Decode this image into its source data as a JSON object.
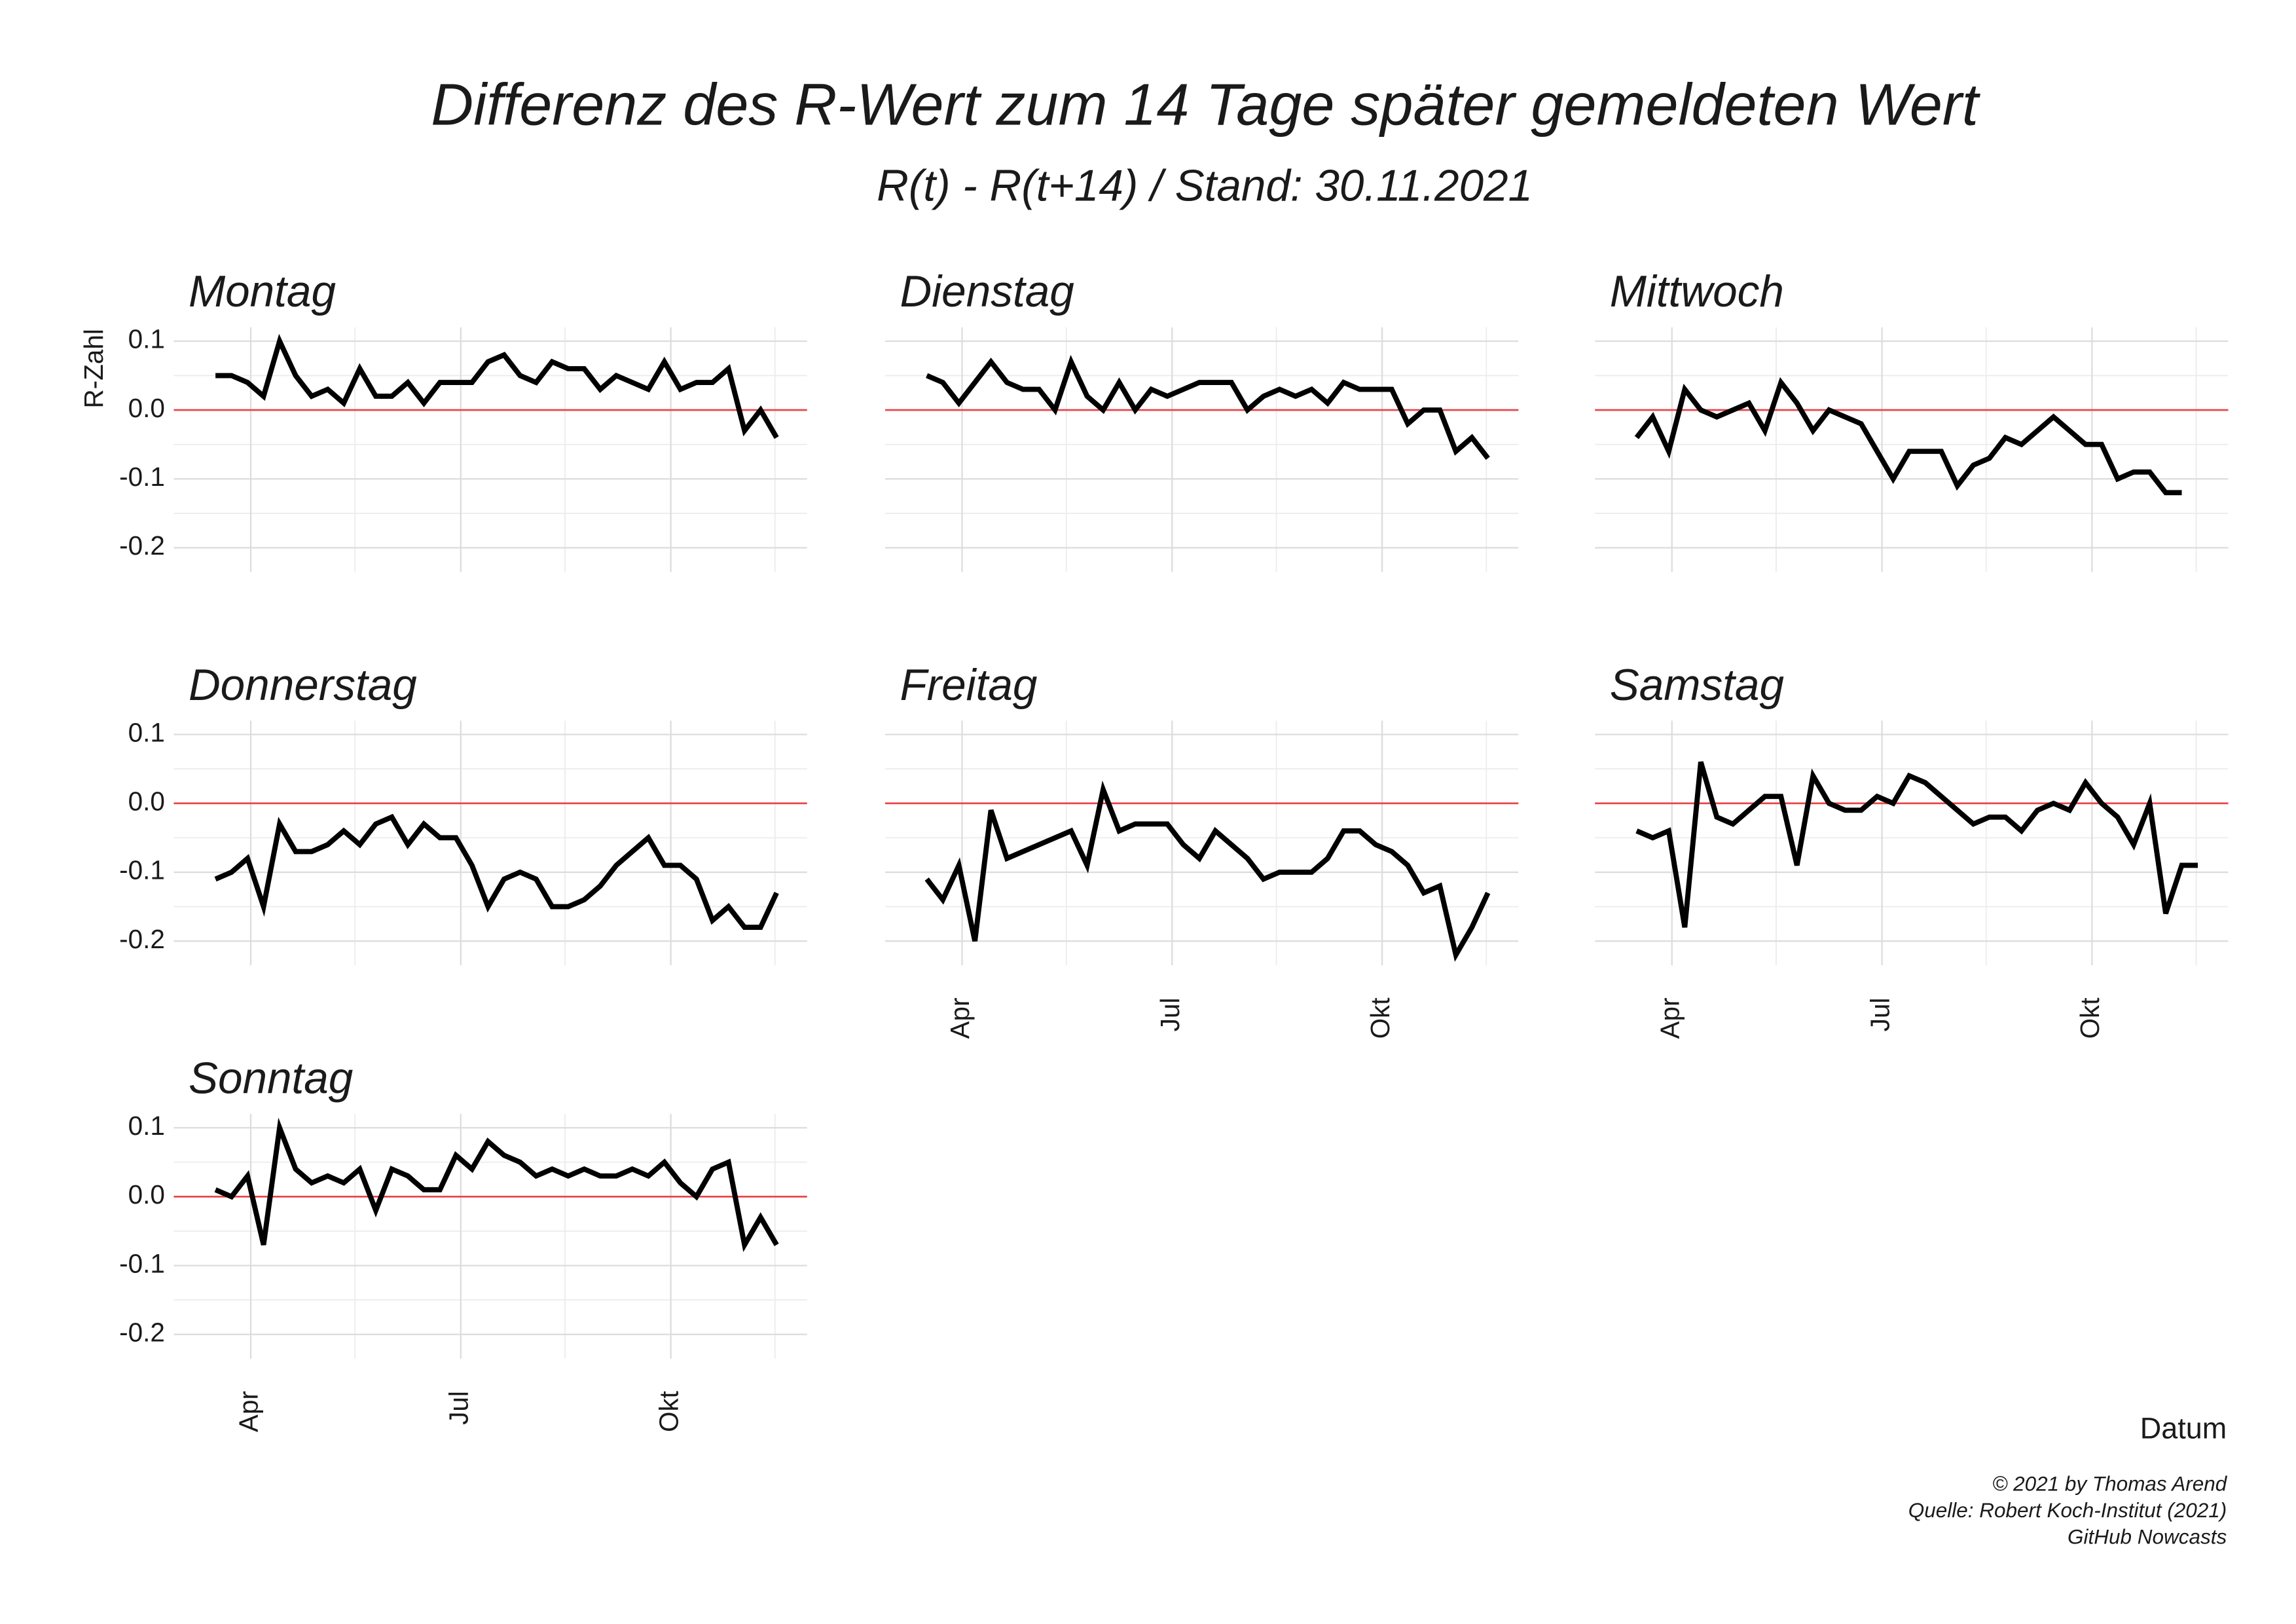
{
  "chart_data": {
    "type": "line",
    "title": "Differenz des R-Wert zum 14 Tage später gemeldeten Wert",
    "subtitle": "R(t) - R(t+14) / Stand: 30.11.2021",
    "y_label": "R-Zahl",
    "x_label": "Datum",
    "caption": [
      "© 2021 by Thomas Arend",
      "Quelle: Robert Koch-Institut (2021)",
      "GitHub Nowcasts"
    ],
    "ylim": [
      -0.235,
      0.12
    ],
    "yticks": [
      -0.2,
      -0.1,
      {
        "value": 0,
        "label": "0.0"
      },
      0.1
    ],
    "yminor": [
      -0.15,
      -0.05,
      0.05
    ],
    "xlim": [
      -2.6,
      36.9
    ],
    "xticks": [
      {
        "value": 2.2,
        "label": "Apr"
      },
      {
        "value": 15.3,
        "label": "Jul"
      },
      {
        "value": 28.4,
        "label": "Okt"
      }
    ],
    "xminor": [
      8.7,
      21.8,
      34.9
    ],
    "grid": true,
    "hline": 0,
    "hline_color": "#e8474c",
    "series": [
      {
        "name": "Montag",
        "color": "#000000",
        "values": [
          0.05,
          0.05,
          0.04,
          0.02,
          0.1,
          0.05,
          0.02,
          0.03,
          0.01,
          0.06,
          0.02,
          0.02,
          0.04,
          0.01,
          0.04,
          0.04,
          0.04,
          0.07,
          0.08,
          0.05,
          0.04,
          0.07,
          0.06,
          0.06,
          0.03,
          0.05,
          0.04,
          0.03,
          0.07,
          0.03,
          0.04,
          0.04,
          0.06,
          -0.03,
          0.0,
          -0.04
        ]
      },
      {
        "name": "Dienstag",
        "color": "#000000",
        "values": [
          0.05,
          0.04,
          0.01,
          0.04,
          0.07,
          0.04,
          0.03,
          0.03,
          0.0,
          0.07,
          0.02,
          0.0,
          0.04,
          0.0,
          0.03,
          0.02,
          0.03,
          0.04,
          0.04,
          0.04,
          0.0,
          0.02,
          0.03,
          0.02,
          0.03,
          0.01,
          0.04,
          0.03,
          0.03,
          0.03,
          -0.02,
          0.0,
          0.0,
          -0.06,
          -0.04,
          -0.07
        ]
      },
      {
        "name": "Mittwoch",
        "color": "#000000",
        "values": [
          -0.04,
          -0.01,
          -0.06,
          0.03,
          0.0,
          -0.01,
          0.0,
          0.01,
          -0.03,
          0.04,
          0.01,
          -0.03,
          0.0,
          -0.01,
          -0.02,
          -0.06,
          -0.1,
          -0.06,
          -0.06,
          -0.06,
          -0.11,
          -0.08,
          -0.07,
          -0.04,
          -0.05,
          -0.03,
          -0.01,
          -0.03,
          -0.05,
          -0.05,
          -0.1,
          -0.09,
          -0.09,
          -0.12,
          -0.12
        ]
      },
      {
        "name": "Donnerstag",
        "color": "#000000",
        "values": [
          -0.11,
          -0.1,
          -0.08,
          -0.15,
          -0.03,
          -0.07,
          -0.07,
          -0.06,
          -0.04,
          -0.06,
          -0.03,
          -0.02,
          -0.06,
          -0.03,
          -0.05,
          -0.05,
          -0.09,
          -0.15,
          -0.11,
          -0.1,
          -0.11,
          -0.15,
          -0.15,
          -0.14,
          -0.12,
          -0.09,
          -0.07,
          -0.05,
          -0.09,
          -0.09,
          -0.11,
          -0.17,
          -0.15,
          -0.18,
          -0.18,
          -0.13
        ]
      },
      {
        "name": "Freitag",
        "color": "#000000",
        "values": [
          -0.11,
          -0.14,
          -0.09,
          -0.2,
          -0.01,
          -0.08,
          -0.07,
          -0.06,
          -0.05,
          -0.04,
          -0.09,
          0.02,
          -0.04,
          -0.03,
          -0.03,
          -0.03,
          -0.06,
          -0.08,
          -0.04,
          -0.06,
          -0.08,
          -0.11,
          -0.1,
          -0.1,
          -0.1,
          -0.08,
          -0.04,
          -0.04,
          -0.06,
          -0.07,
          -0.09,
          -0.13,
          -0.12,
          -0.22,
          -0.18,
          -0.13
        ]
      },
      {
        "name": "Samstag",
        "color": "#000000",
        "values": [
          -0.04,
          -0.05,
          -0.04,
          -0.18,
          0.06,
          -0.02,
          -0.03,
          -0.01,
          0.01,
          0.01,
          -0.09,
          0.04,
          0.0,
          -0.01,
          -0.01,
          0.01,
          0.0,
          0.04,
          0.03,
          0.01,
          -0.01,
          -0.03,
          -0.02,
          -0.02,
          -0.04,
          -0.01,
          0.0,
          -0.01,
          0.03,
          0.0,
          -0.02,
          -0.06,
          0.0,
          -0.16,
          -0.09,
          -0.09
        ]
      },
      {
        "name": "Sonntag",
        "color": "#000000",
        "values": [
          0.01,
          0.0,
          0.03,
          -0.07,
          0.1,
          0.04,
          0.02,
          0.03,
          0.02,
          0.04,
          -0.02,
          0.04,
          0.03,
          0.01,
          0.01,
          0.06,
          0.04,
          0.08,
          0.06,
          0.05,
          0.03,
          0.04,
          0.03,
          0.04,
          0.03,
          0.03,
          0.04,
          0.03,
          0.05,
          0.02,
          0.0,
          0.04,
          0.05,
          -0.07,
          -0.03,
          -0.07
        ]
      }
    ]
  }
}
